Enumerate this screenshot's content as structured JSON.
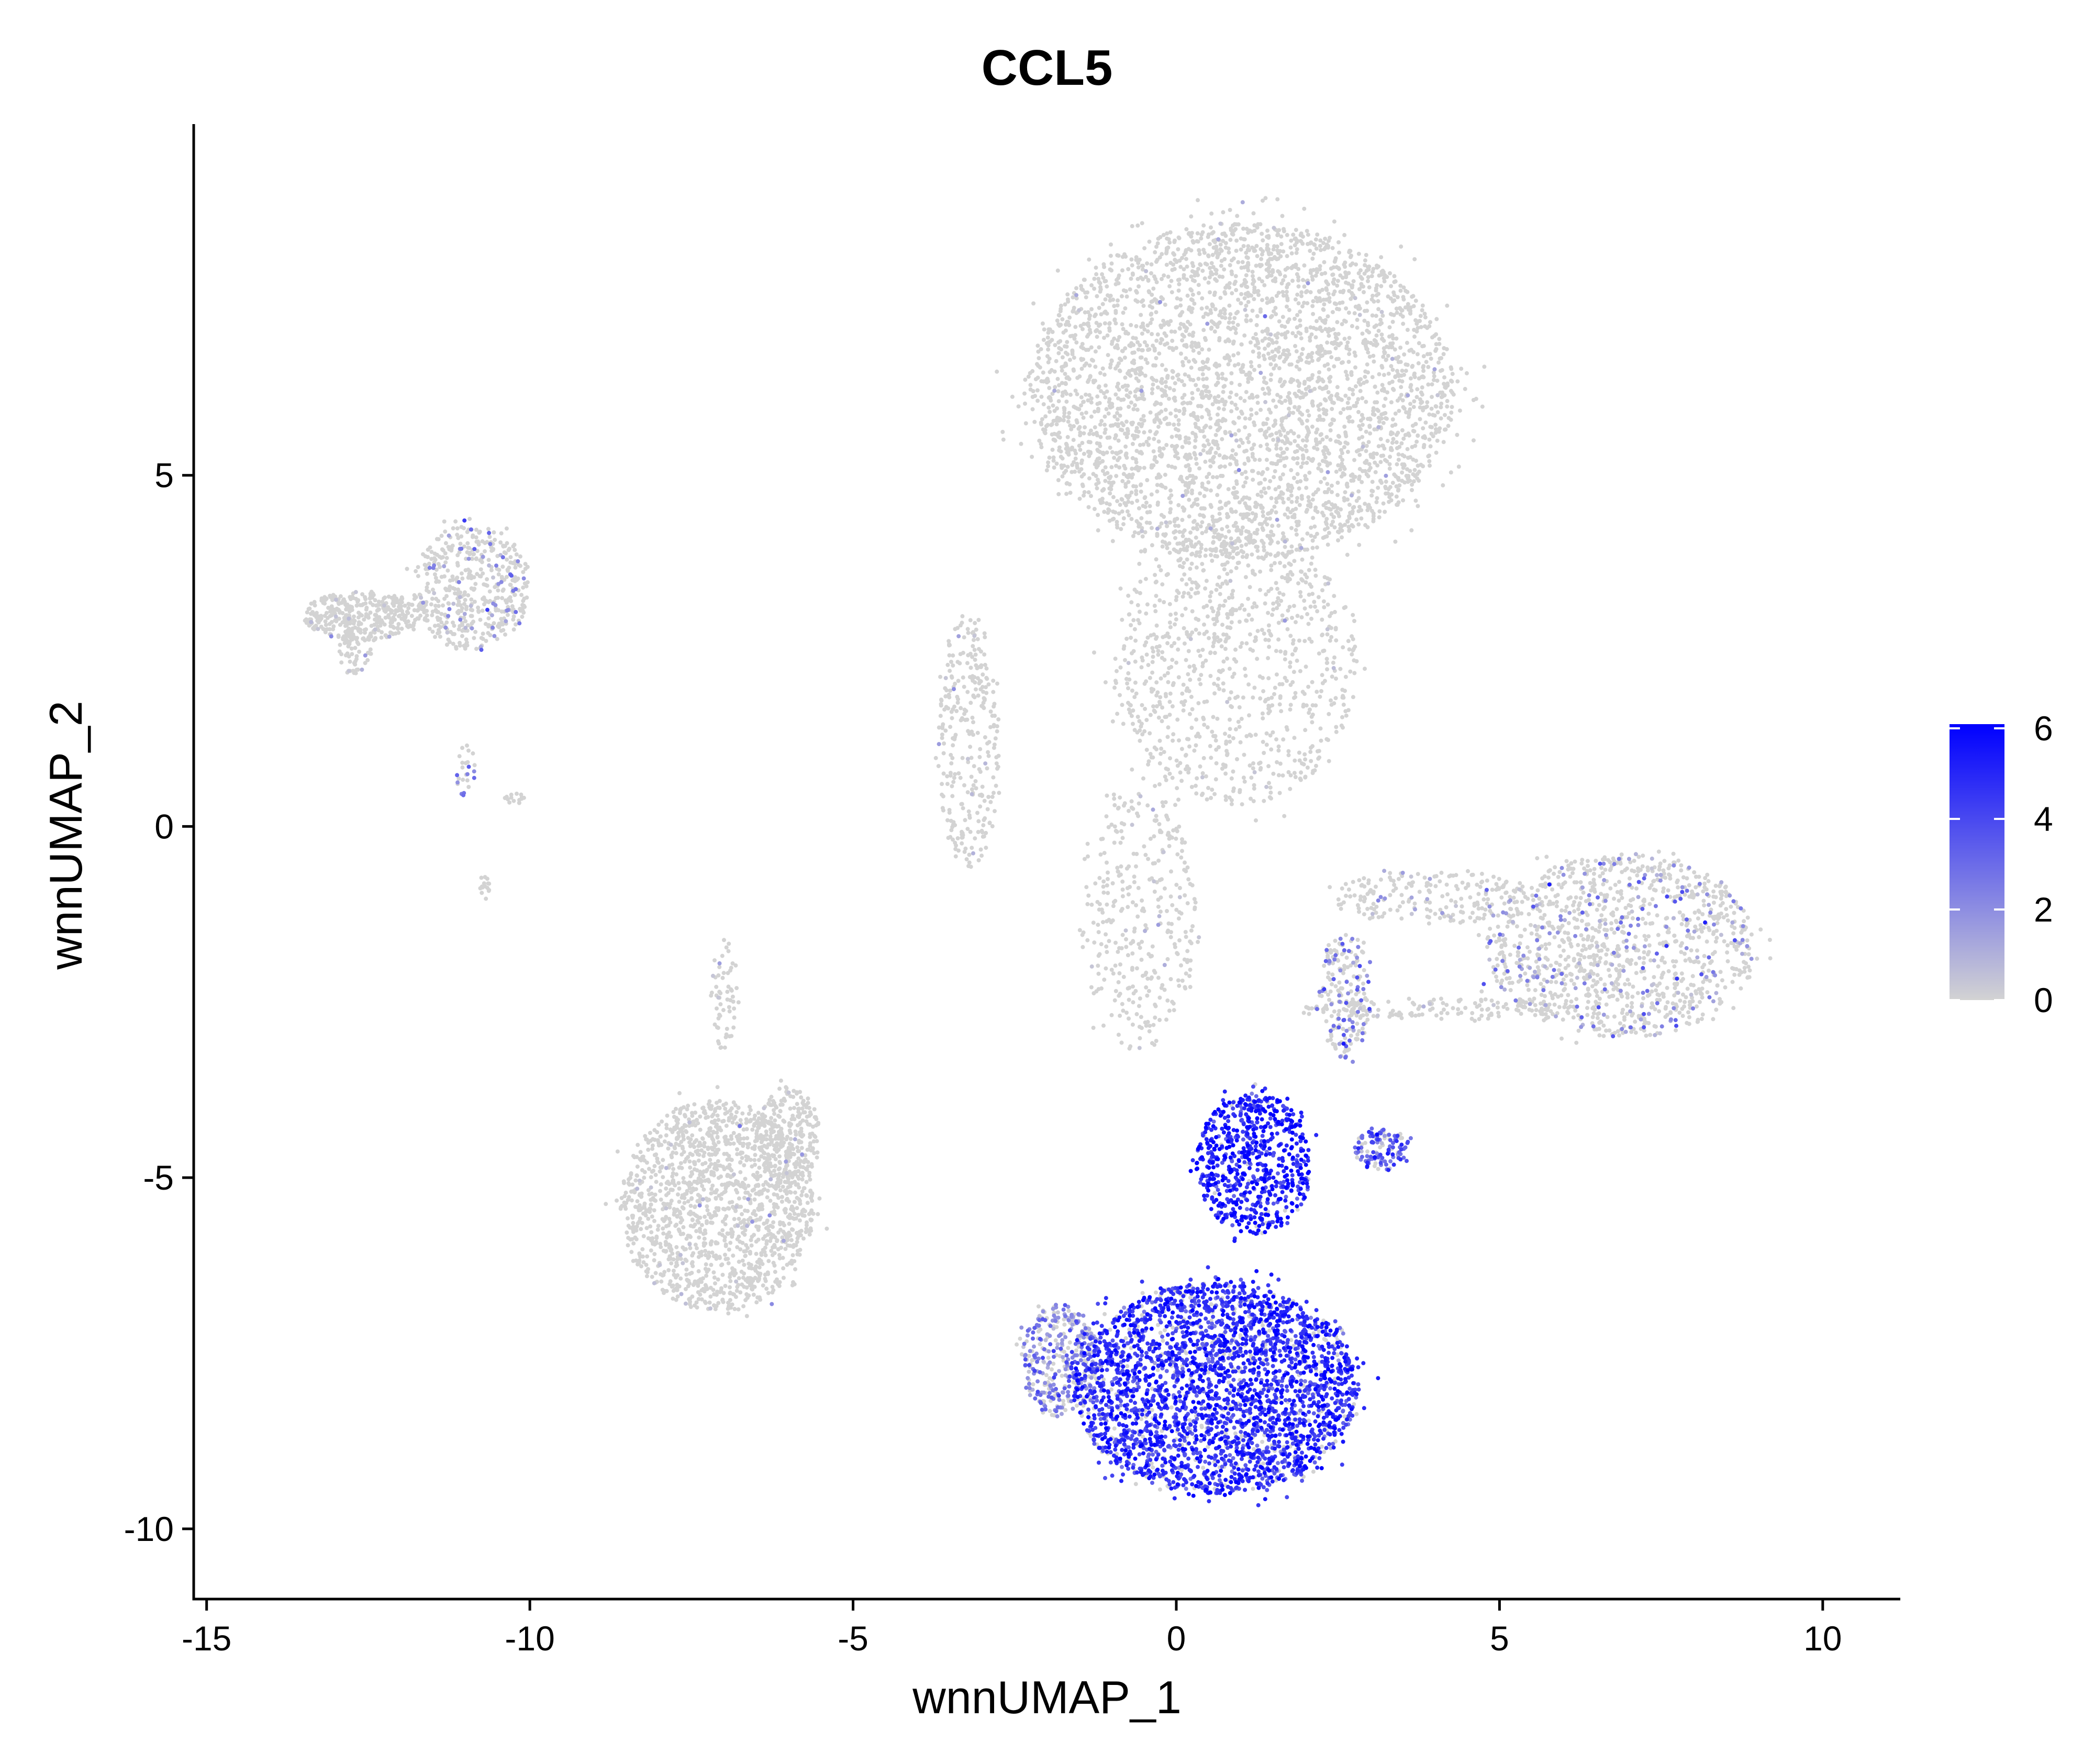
{
  "chart_data": {
    "type": "scatter",
    "title": "CCL5",
    "xlabel": "wnnUMAP_1",
    "ylabel": "wnnUMAP_2",
    "xlim": [
      -15.2,
      11.2
    ],
    "ylim": [
      -11,
      10
    ],
    "x_ticks": [
      -15,
      -10,
      -5,
      0,
      5,
      10
    ],
    "x_tick_labels": [
      "-15",
      "-10",
      "-5",
      "0",
      "5",
      "10"
    ],
    "y_ticks": [
      -10,
      -5,
      0,
      5
    ],
    "y_tick_labels": [
      "-10",
      "-5",
      "0",
      "5"
    ],
    "grid": false,
    "legend": {
      "placement": "right",
      "type": "colorbar",
      "min": 0,
      "max": 6,
      "ticks": [
        0,
        2,
        4,
        6
      ],
      "tick_labels": [
        "0",
        "2",
        "4",
        "6"
      ],
      "low_color": "#D3D3D3",
      "high_color": "#0000FF"
    },
    "clusters": [
      {
        "cx": 1.0,
        "cy": 6.2,
        "rx": 3.3,
        "ry": 2.4,
        "points": 3600,
        "expr_mean": 0.05,
        "expr_prob": 0.01
      },
      {
        "cx": 0.9,
        "cy": 2.3,
        "rx": 1.9,
        "ry": 2.0,
        "points": 900,
        "expr_mean": 0.1,
        "expr_prob": 0.01
      },
      {
        "cx": -3.2,
        "cy": 1.2,
        "rx": 0.5,
        "ry": 1.8,
        "points": 300,
        "expr_mean": 0.3,
        "expr_prob": 0.02
      },
      {
        "cx": -0.6,
        "cy": -1.3,
        "rx": 0.9,
        "ry": 1.9,
        "points": 350,
        "expr_mean": 0.3,
        "expr_prob": 0.03
      },
      {
        "cx": 6.9,
        "cy": -1.7,
        "rx": 2.1,
        "ry": 1.3,
        "points": 1200,
        "expr_mean": 2.0,
        "expr_prob": 0.15
      },
      {
        "cx": 3.9,
        "cy": -1.0,
        "rx": 1.5,
        "ry": 0.4,
        "points": 200,
        "expr_mean": 1.0,
        "expr_prob": 0.1
      },
      {
        "cx": 4.0,
        "cy": -2.6,
        "rx": 2.2,
        "ry": 0.15,
        "points": 150,
        "expr_mean": 0.2,
        "expr_prob": 0.02
      },
      {
        "cx": 2.6,
        "cy": -2.4,
        "rx": 0.4,
        "ry": 0.9,
        "points": 200,
        "expr_mean": 2.6,
        "expr_prob": 0.35
      },
      {
        "cx": 3.2,
        "cy": -4.6,
        "rx": 0.45,
        "ry": 0.3,
        "points": 120,
        "expr_mean": 3.5,
        "expr_prob": 0.85
      },
      {
        "cx": 1.2,
        "cy": -4.8,
        "rx": 0.9,
        "ry": 1.0,
        "points": 700,
        "expr_mean": 5.0,
        "expr_prob": 0.95
      },
      {
        "cx": 0.6,
        "cy": -8.0,
        "rx": 2.2,
        "ry": 1.5,
        "points": 3000,
        "expr_mean": 4.6,
        "expr_prob": 0.88
      },
      {
        "cx": -1.8,
        "cy": -7.6,
        "rx": 0.6,
        "ry": 0.8,
        "points": 350,
        "expr_mean": 2.2,
        "expr_prob": 0.6
      },
      {
        "cx": -7.1,
        "cy": -5.4,
        "rx": 1.5,
        "ry": 1.5,
        "points": 1500,
        "expr_mean": 0.2,
        "expr_prob": 0.015
      },
      {
        "cx": -6.0,
        "cy": -4.4,
        "rx": 0.5,
        "ry": 0.7,
        "points": 250,
        "expr_mean": 0.2,
        "expr_prob": 0.015
      },
      {
        "cx": -7.0,
        "cy": -2.4,
        "rx": 0.2,
        "ry": 0.8,
        "points": 60,
        "expr_mean": 0.5,
        "expr_prob": 0.05
      },
      {
        "cx": -10.9,
        "cy": 3.4,
        "rx": 0.9,
        "ry": 0.9,
        "points": 500,
        "expr_mean": 1.8,
        "expr_prob": 0.12
      },
      {
        "cx": -12.6,
        "cy": 3.0,
        "rx": 0.9,
        "ry": 0.35,
        "points": 350,
        "expr_mean": 0.5,
        "expr_prob": 0.04
      },
      {
        "cx": -12.7,
        "cy": 2.5,
        "rx": 0.25,
        "ry": 0.35,
        "points": 60,
        "expr_mean": 0.5,
        "expr_prob": 0.04
      },
      {
        "cx": -11.0,
        "cy": 0.8,
        "rx": 0.15,
        "ry": 0.4,
        "points": 25,
        "expr_mean": 2.5,
        "expr_prob": 0.2
      },
      {
        "cx": -10.2,
        "cy": 0.4,
        "rx": 0.2,
        "ry": 0.08,
        "points": 15,
        "expr_mean": 0.2,
        "expr_prob": 0.02
      },
      {
        "cx": -10.7,
        "cy": -0.85,
        "rx": 0.1,
        "ry": 0.2,
        "points": 15,
        "expr_mean": 0.2,
        "expr_prob": 0.02
      }
    ]
  }
}
